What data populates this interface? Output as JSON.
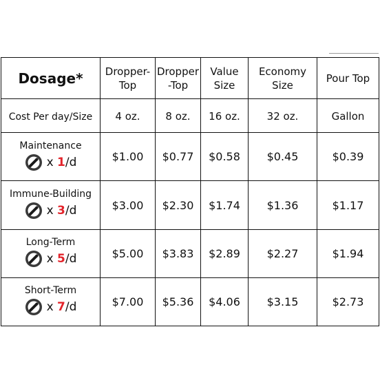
{
  "table": {
    "header": {
      "title": "Dosage*",
      "columns": [
        "Dropper-\nTop",
        "Dropper\n-Top",
        "Value\nSize",
        "Economy\nSize",
        "Pour Top"
      ]
    },
    "subheader": {
      "label": "Cost Per day/Size",
      "sizes": [
        "4 oz.",
        "8 oz.",
        "16 oz.",
        "32 oz.",
        "Gallon"
      ]
    },
    "rows": [
      {
        "name": "Maintenance",
        "times_prefix": "x ",
        "count": "1",
        "suffix": "/d",
        "prices": [
          "$1.00",
          "$0.77",
          "$0.58",
          "$0.45",
          "$0.39"
        ]
      },
      {
        "name": "Immune-Building",
        "times_prefix": "x ",
        "count": "3",
        "suffix": "/d",
        "prices": [
          "$3.00",
          "$2.30",
          "$1.74",
          "$1.36",
          "$1.17"
        ]
      },
      {
        "name": "Long-Term",
        "times_prefix": "x ",
        "count": "5",
        "suffix": "/d",
        "prices": [
          "$5.00",
          "$3.83",
          "$2.89",
          "$2.27",
          "$1.94"
        ]
      },
      {
        "name": "Short-Term",
        "times_prefix": "x ",
        "count": "7",
        "suffix": "/d",
        "prices": [
          "$7.00",
          "$5.36",
          "$4.06",
          "$3.15",
          "$2.73"
        ]
      }
    ]
  },
  "icons": {
    "dose": "dropper-icon"
  },
  "colors": {
    "dose_count": "#e3242b",
    "border": "#111111"
  }
}
